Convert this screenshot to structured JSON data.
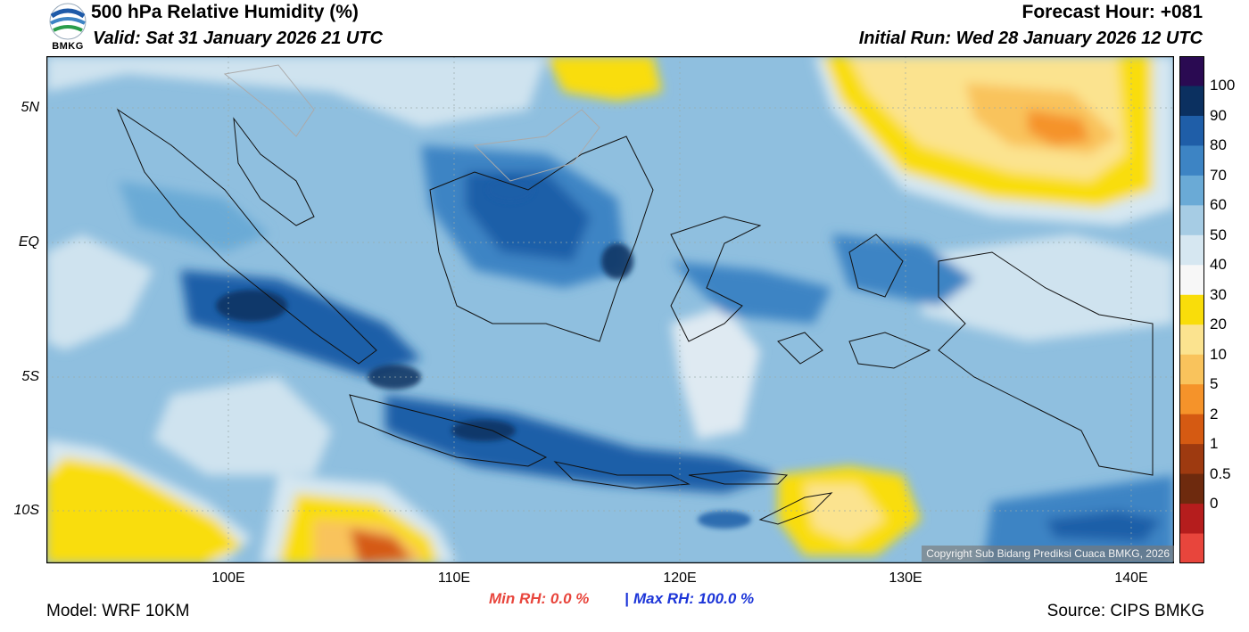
{
  "header": {
    "title": "500 hPa Relative Humidity (%)",
    "valid": "Valid: Sat 31 January 2026 21 UTC",
    "forecast_hour": "Forecast Hour: +081",
    "initial_run": "Initial Run: Wed 28 January 2026 12 UTC"
  },
  "logo": {
    "text": "BMKG",
    "icon": "bmkg-logo-icon"
  },
  "map": {
    "lat_labels": [
      "5N",
      "EQ",
      "5S",
      "10S"
    ],
    "lon_labels": [
      "100E",
      "110E",
      "120E",
      "130E",
      "140E"
    ],
    "copyright": "Copyright Sub Bidang Prediksi Cuaca BMKG, 2026"
  },
  "colorbar": {
    "labels": [
      "100",
      "90",
      "80",
      "70",
      "60",
      "50",
      "40",
      "30",
      "20",
      "10",
      "5",
      "2",
      "1",
      "0.5",
      "0"
    ],
    "colors": [
      "#2a0a52",
      "#0b3060",
      "#1f5ea8",
      "#3d84c4",
      "#6aaad6",
      "#a6cce4",
      "#d6e7f1",
      "#f7f7f7",
      "#f9dd0a",
      "#fbe38f",
      "#f9c35c",
      "#f5932a",
      "#d55a12",
      "#9e3a10",
      "#6e2a0e",
      "#b51d1d",
      "#e8453c"
    ]
  },
  "footer": {
    "model": "Model: WRF 10KM",
    "min_rh": "Min RH:   0.0 %",
    "separator": "|",
    "max_rh": "Max RH: 100.0 %",
    "source": "Source: CIPS BMKG"
  }
}
